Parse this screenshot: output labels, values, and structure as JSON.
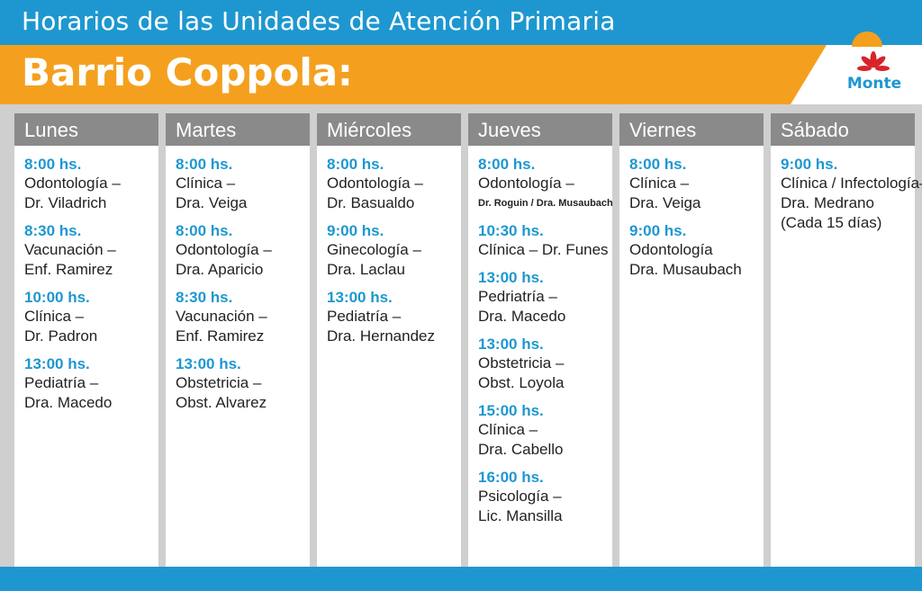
{
  "header": {
    "title": "Horarios de las Unidades de Atención Primaria",
    "subtitle": "Barrio Coppola:"
  },
  "logo": {
    "text": "Monte",
    "color": "#1e97d0",
    "flower_color": "#d8232a",
    "sun_color": "#f4a01e"
  },
  "colors": {
    "blue": "#1e97d0",
    "orange": "#f4a01e",
    "header_gray": "#8a8a8a"
  },
  "days": [
    {
      "name": "Lunes",
      "entries": [
        {
          "time": "8:00 hs.",
          "lines": [
            "Odontología –",
            "Dr. Viladrich"
          ]
        },
        {
          "time": "8:30 hs.",
          "lines": [
            "Vacunación –",
            "Enf. Ramirez"
          ]
        },
        {
          "time": "10:00 hs.",
          "lines": [
            "Clínica –",
            "Dr. Padron"
          ]
        },
        {
          "time": "13:00 hs.",
          "lines": [
            "Pediatría –",
            "Dra. Macedo"
          ]
        }
      ]
    },
    {
      "name": "Martes",
      "entries": [
        {
          "time": "8:00 hs.",
          "lines": [
            "Clínica –",
            "Dra. Veiga"
          ]
        },
        {
          "time": "8:00 hs.",
          "lines": [
            "Odontología –",
            "Dra. Aparicio"
          ]
        },
        {
          "time": "8:30 hs.",
          "lines": [
            "Vacunación –",
            "Enf. Ramirez"
          ]
        },
        {
          "time": "13:00 hs.",
          "lines": [
            "Obstetricia –",
            "Obst. Alvarez"
          ]
        }
      ]
    },
    {
      "name": "Miércoles",
      "entries": [
        {
          "time": "8:00 hs.",
          "lines": [
            "Odontología –",
            "Dr. Basualdo"
          ]
        },
        {
          "time": "9:00 hs.",
          "lines": [
            "Ginecología –",
            "Dra. Laclau"
          ]
        },
        {
          "time": "13:00 hs.",
          "lines": [
            "Pediatría –",
            "Dra. Hernandez"
          ]
        }
      ]
    },
    {
      "name": "Jueves",
      "entries": [
        {
          "time": "8:00 hs.",
          "lines": [
            "Odontología –"
          ],
          "small": "Dr. Roguin / Dra. Musaubach"
        },
        {
          "time": "10:30 hs.",
          "lines": [
            "Clínica – Dr. Funes"
          ]
        },
        {
          "time": "13:00 hs.",
          "lines": [
            "Pedriatría –",
            "Dra. Macedo"
          ]
        },
        {
          "time": "13:00 hs.",
          "lines": [
            "Obstetricia –",
            "Obst. Loyola"
          ]
        },
        {
          "time": "15:00 hs.",
          "lines": [
            "Clínica –",
            "Dra. Cabello"
          ]
        },
        {
          "time": "16:00 hs.",
          "lines": [
            "Psicología –",
            "Lic. Mansilla"
          ]
        }
      ]
    },
    {
      "name": "Viernes",
      "entries": [
        {
          "time": "8:00 hs.",
          "lines": [
            "Clínica –",
            "Dra. Veiga"
          ]
        },
        {
          "time": "9:00 hs.",
          "lines": [
            "Odontología",
            "Dra. Musaubach"
          ]
        }
      ]
    },
    {
      "name": "Sábado",
      "entries": [
        {
          "time": "9:00 hs.",
          "lines": [
            "Clínica / Infectología–",
            "Dra. Medrano",
            "(Cada 15 días)"
          ]
        }
      ]
    }
  ]
}
